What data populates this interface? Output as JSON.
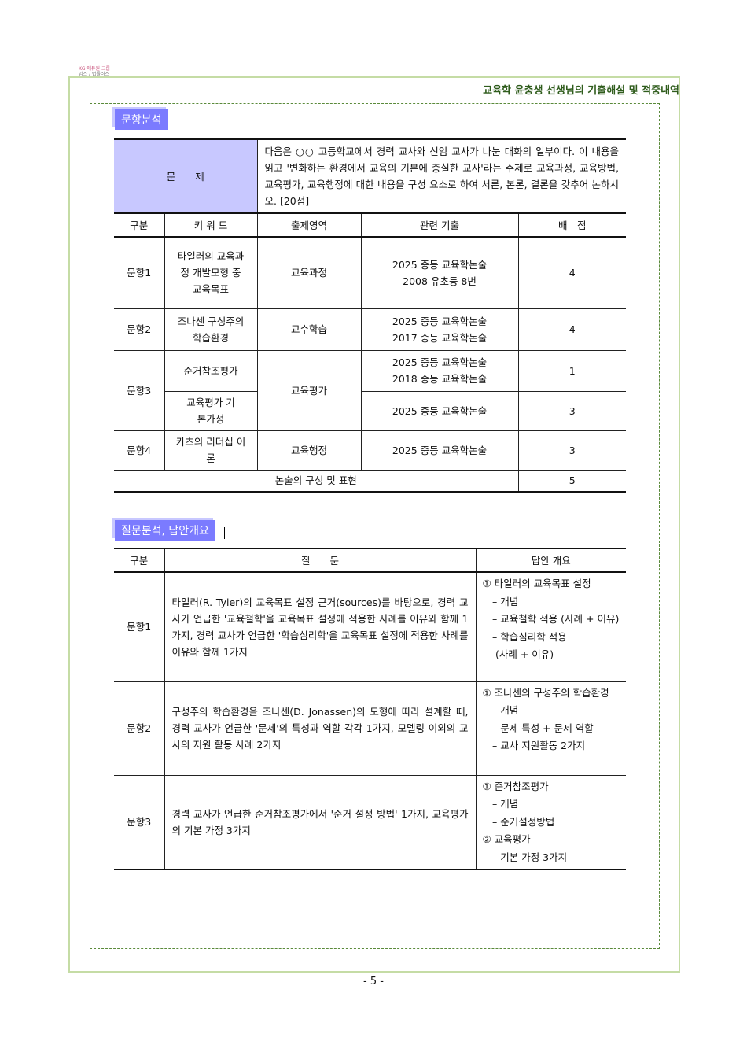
{
  "logo": {
    "line1": "KG 에듀원 그룹",
    "line2": "임스 / 법률러스"
  },
  "header": "교육학 윤충생 선생님의 기출해설 및 적중내역",
  "section1": "문항분석",
  "problem": {
    "label": "문　　제",
    "text": "다음은 ○○ 고등학교에서 경력 교사와 신임 교사가 나눈 대화의 일부이다. 이 내용을 읽고 '변화하는 환경에서 교육의 기본에 충실한 교사'라는 주제로 교육과정, 교육방법, 교육평가, 교육행정에 대한 내용을 구성 요소로 하여 서론, 본론, 결론을 갖추어 논하시오. [20점]"
  },
  "table1": {
    "headers": [
      "구분",
      "키 워 드",
      "출제영역",
      "관련 기출",
      "배　점"
    ],
    "rows": [
      {
        "item": "문항1",
        "keyword": "타일러의 교육과정 개발모형 중 교육목표",
        "area": "교육과정",
        "past": [
          "2025 중등 교육학논술",
          "2008 유초등 8번"
        ],
        "score": "4"
      },
      {
        "item": "문항2",
        "keyword": "조나센 구성주의 학습환경",
        "area": "교수학습",
        "past": [
          "2025 중등 교육학논술",
          "2017 중등 교육학논술"
        ],
        "score": "4"
      },
      {
        "item": "문항3",
        "keyword": "준거참조평가",
        "area": "교육평가",
        "past": [
          "2025 중등 교육학논술",
          "2018 중등 교육학논술"
        ],
        "score": "1"
      },
      {
        "keyword": "교육평가 기본가정",
        "past": [
          "2025 중등 교육학논술"
        ],
        "score": "3"
      },
      {
        "item": "문항4",
        "keyword": "카츠의 리더십 이론",
        "area": "교육행정",
        "past": [
          "2025 중등 교육학논술"
        ],
        "score": "3"
      }
    ],
    "footer": {
      "label": "논술의 구성 및 표현",
      "score": "5"
    }
  },
  "section2": "질문분석, 답안개요",
  "table2": {
    "headers": [
      "구분",
      "질　　문",
      "답안 개요"
    ],
    "rows": [
      {
        "item": "문항1",
        "question": "타일러(R. Tyler)의 교육목표 설정 근거(sources)를 바탕으로, 경력 교사가 언급한 '교육철학'을 교육목표 설정에 적용한 사례를 이유와 함께 1가지, 경력 교사가 언급한 '학습심리학'을 교육목표 설정에 적용한 사례를 이유와 함께 1가지",
        "answer": [
          "① 타일러의 교육목표 설정",
          "　– 개념",
          "　– 교육철학 적용 (사례 + 이유)",
          "　– 학습심리학 적용",
          "　 (사례 + 이유)"
        ]
      },
      {
        "item": "문항2",
        "question": "구성주의 학습환경을 조나센(D. Jonassen)의 모형에 따라 설계할 때, 경력 교사가 언급한 '문제'의 특성과 역할 각각 1가지, 모델링 이외의 교사의 지원 활동 사례 2가지",
        "answer": [
          "① 조나센의 구성주의 학습환경",
          "　– 개념",
          "　– 문제 특성 + 문제 역할",
          "　– 교사 지원활동 2가지"
        ]
      },
      {
        "item": "문항3",
        "question": "경력 교사가 언급한 준거참조평가에서 '준거 설정 방법' 1가지, 교육평가의 기본 가정 3가지",
        "answer": [
          "① 준거참조평가",
          "　– 개념",
          "　– 준거설정방법",
          "② 교육평가",
          "　– 기본 가정 3가지"
        ]
      }
    ]
  },
  "page_number": "- 5 -"
}
